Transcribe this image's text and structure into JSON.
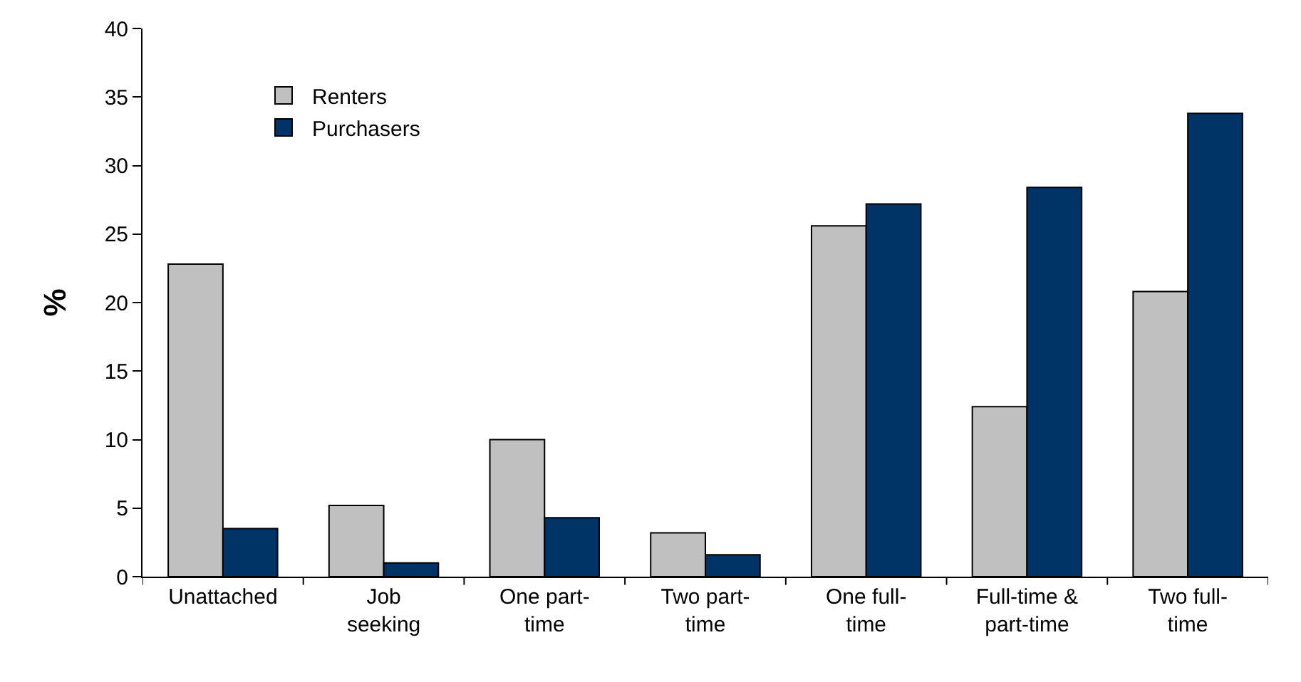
{
  "chart_data": {
    "type": "bar",
    "ylabel": "%",
    "categories": [
      "Unattached",
      "Job\nseeking",
      "One part-\ntime",
      "Two part-\ntime",
      "One full-\ntime",
      "Full-time &\npart-time",
      "Two full-\ntime"
    ],
    "series": [
      {
        "name": "Renters",
        "color": "#c0c0c0",
        "values": [
          22.8,
          5.2,
          10.0,
          3.2,
          25.6,
          12.4,
          20.8
        ]
      },
      {
        "name": "Purchasers",
        "color": "#003366",
        "values": [
          3.5,
          1.0,
          4.3,
          1.6,
          27.2,
          28.4,
          33.8
        ]
      }
    ],
    "ylim": [
      0,
      40
    ],
    "yticks": [
      0,
      5,
      10,
      15,
      20,
      25,
      30,
      35,
      40
    ],
    "grid": false,
    "legend": "top left"
  }
}
